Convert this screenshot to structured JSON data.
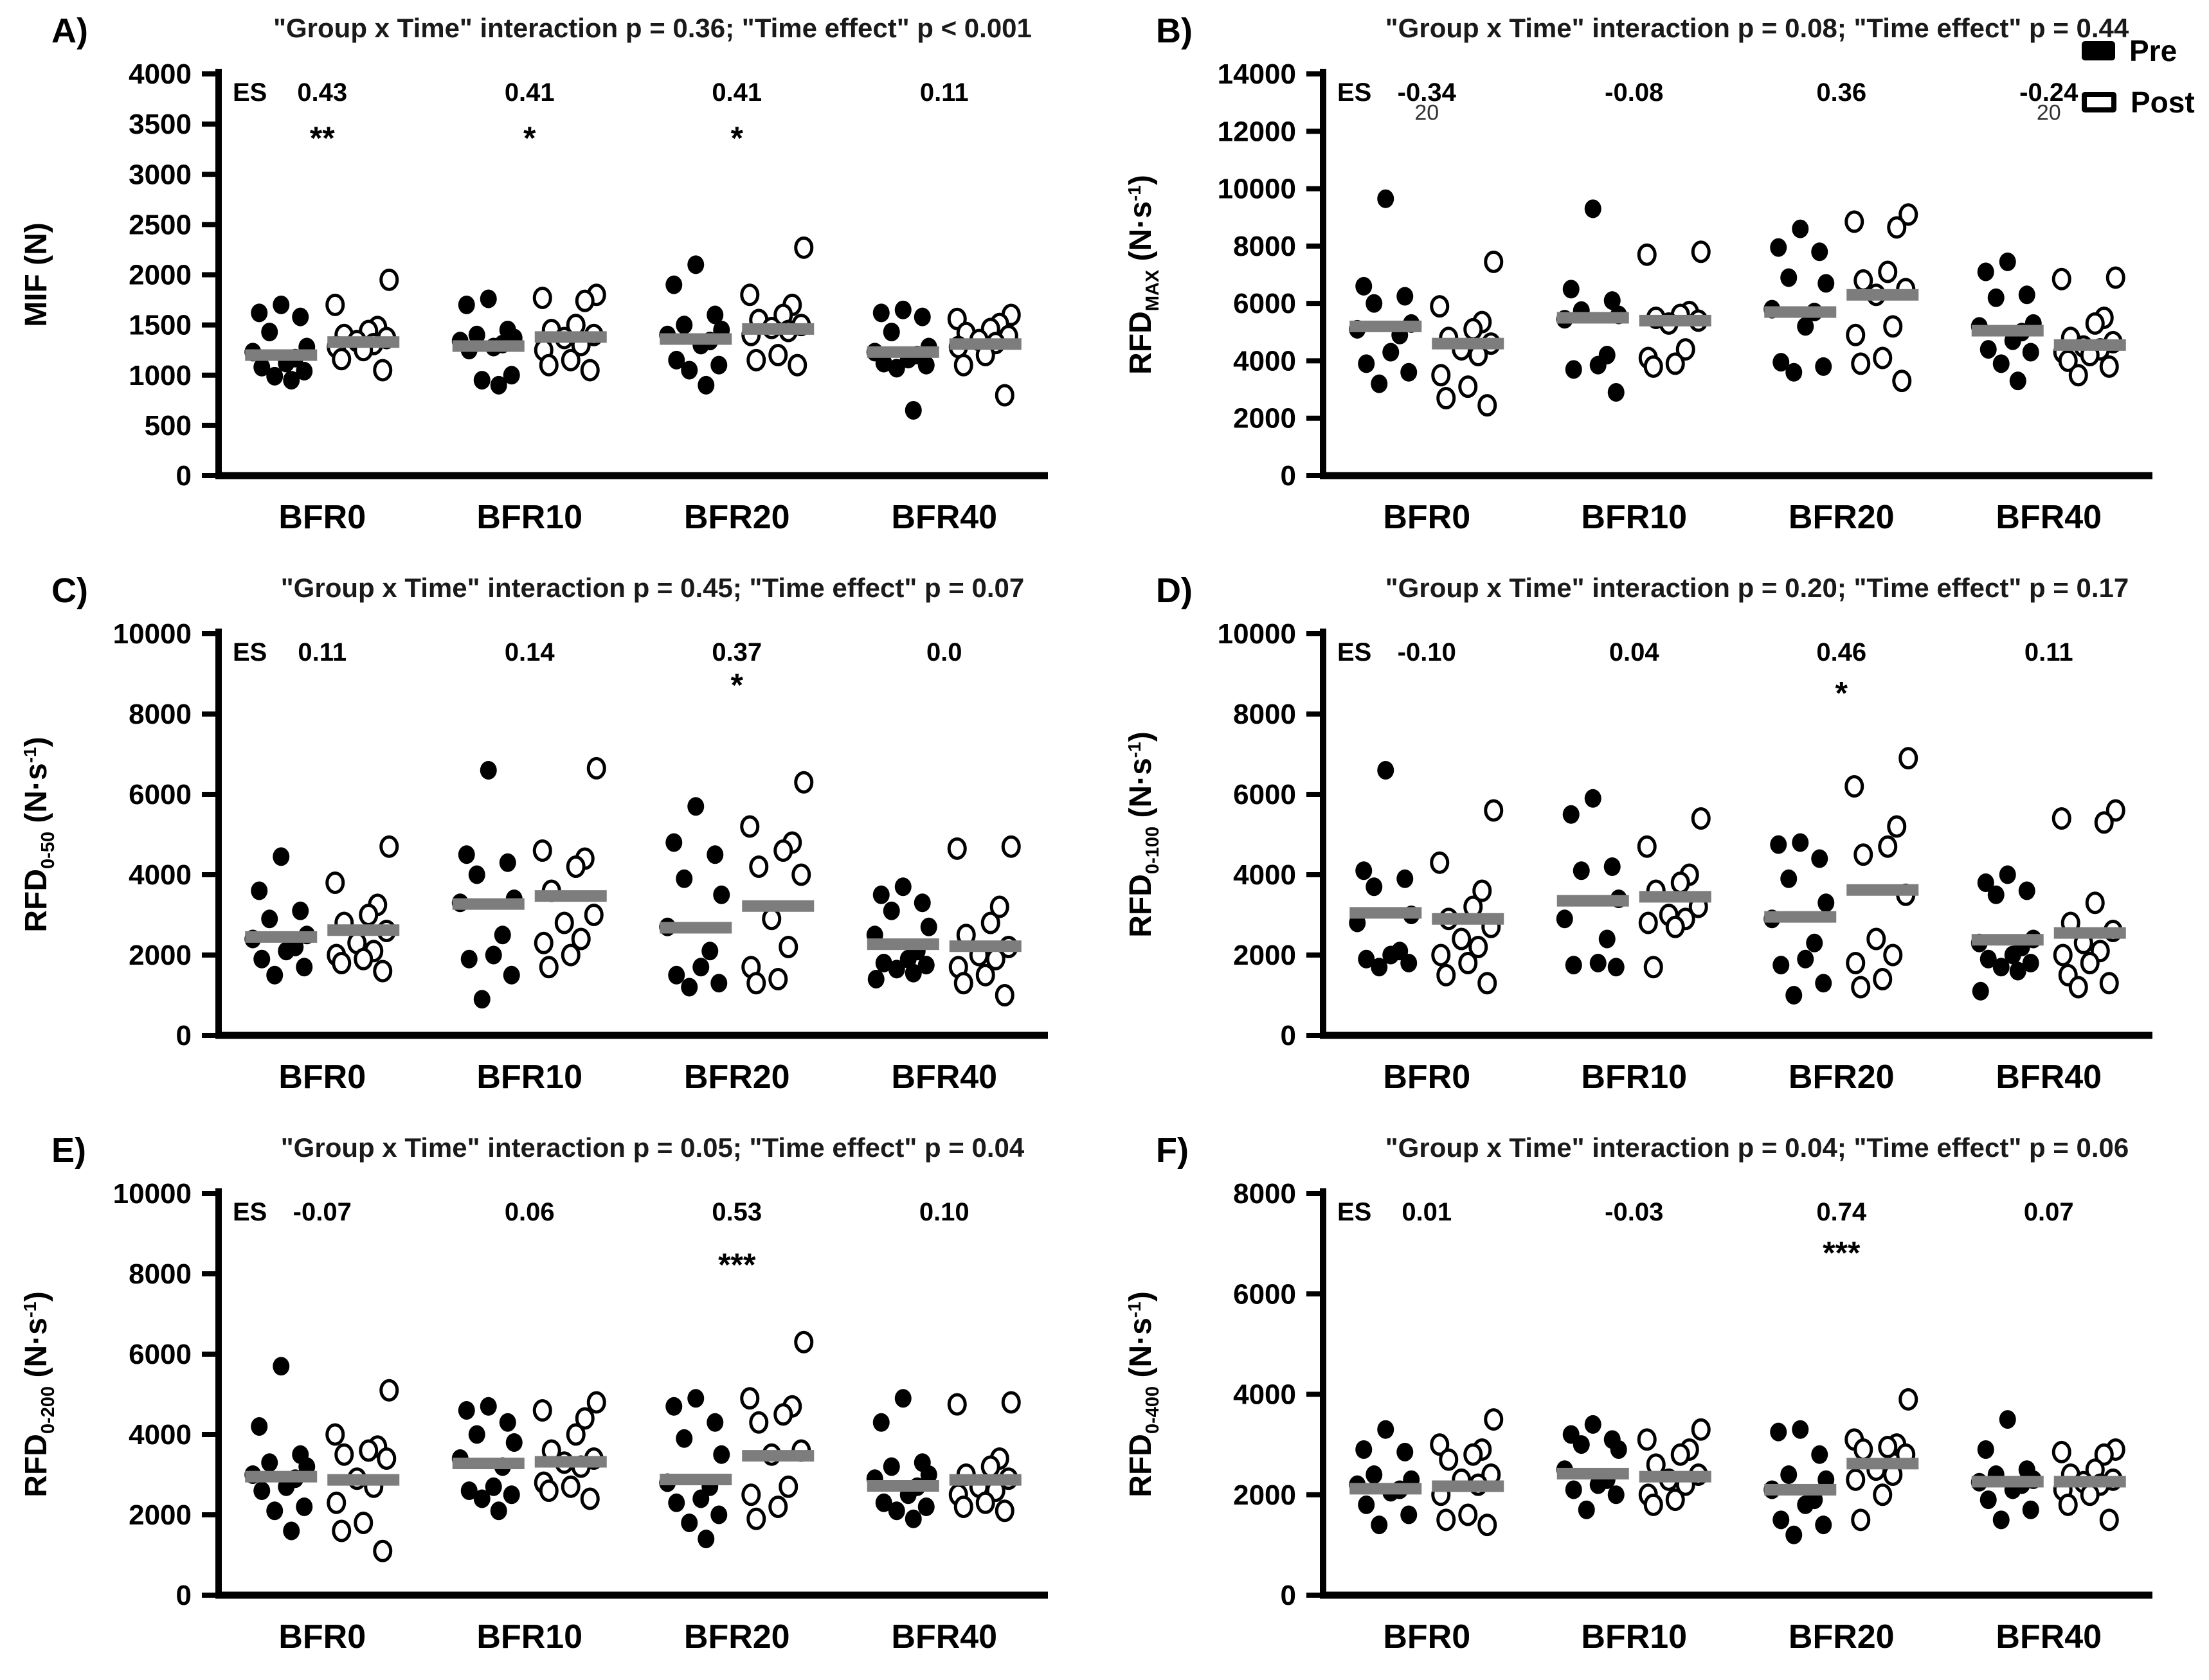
{
  "legend": {
    "pre": "Pre",
    "post": "Post"
  },
  "chart_data": [
    {
      "id": "A",
      "letter": "A)",
      "type": "scatter",
      "title": "\"Group x Time\" interaction p = 0.36; \"Time effect\"  p < 0.001",
      "ylabel": {
        "main": "MIF",
        "sub": "",
        "unit": "(N)",
        "sup": "",
        "close": ""
      },
      "ylim": [
        0,
        4000
      ],
      "ystep": 500,
      "es_label": "ES",
      "categories": [
        "BFR0",
        "BFR10",
        "BFR20",
        "BFR40"
      ],
      "es": [
        "0.43",
        "0.41",
        "0.41",
        "0.11"
      ],
      "sig": [
        {
          "group": 0,
          "text": "**",
          "y": 3250
        },
        {
          "group": 1,
          "text": "*",
          "y": 3250
        },
        {
          "group": 2,
          "text": "*",
          "y": 3250
        }
      ],
      "annotations": [],
      "groups": [
        {
          "pre": [
            1700,
            1620,
            1580,
            1430,
            1280,
            1230,
            1170,
            1120,
            1080,
            1040,
            990,
            950
          ],
          "pre_mean": 1200,
          "post": [
            1950,
            1700,
            1480,
            1440,
            1400,
            1370,
            1340,
            1310,
            1280,
            1250,
            1160,
            1050
          ],
          "post_mean": 1330
        },
        {
          "pre": [
            1760,
            1700,
            1450,
            1400,
            1370,
            1340,
            1310,
            1280,
            1250,
            1000,
            950,
            900
          ],
          "pre_mean": 1290,
          "post": [
            1800,
            1770,
            1740,
            1500,
            1450,
            1400,
            1370,
            1300,
            1250,
            1150,
            1100,
            1050
          ],
          "post_mean": 1380
        },
        {
          "pre": [
            2100,
            1900,
            1600,
            1500,
            1450,
            1400,
            1340,
            1300,
            1150,
            1100,
            1050,
            900
          ],
          "pre_mean": 1360,
          "post": [
            2270,
            1800,
            1700,
            1600,
            1550,
            1500,
            1470,
            1440,
            1400,
            1200,
            1150,
            1100
          ],
          "post_mean": 1460
        },
        {
          "pre": [
            1650,
            1620,
            1580,
            1430,
            1280,
            1230,
            1200,
            1160,
            1120,
            1100,
            1070,
            650
          ],
          "pre_mean": 1230,
          "post": [
            1600,
            1560,
            1510,
            1460,
            1420,
            1390,
            1350,
            1320,
            1280,
            1200,
            1100,
            800
          ],
          "post_mean": 1310
        }
      ]
    },
    {
      "id": "B",
      "letter": "B)",
      "type": "scatter",
      "title": "\"Group x Time\" interaction p = 0.08; \"Time effect\" p = 0.44",
      "ylabel": {
        "main": "RFD",
        "sub": "MAX",
        "unit": "(N·s",
        "sup": "-1",
        "close": ")"
      },
      "ylim": [
        0,
        14000
      ],
      "ystep": 2000,
      "es_label": "ES",
      "categories": [
        "BFR0",
        "BFR10",
        "BFR20",
        "BFR40"
      ],
      "es": [
        "-0.34",
        "-0.08",
        "0.36",
        "-0.24"
      ],
      "sig": [],
      "annotations": [
        {
          "group": 0,
          "text": "20",
          "y": 12400
        },
        {
          "group": 3,
          "text": "20",
          "y": 12400
        }
      ],
      "groups": [
        {
          "pre": [
            9650,
            6600,
            6250,
            6000,
            5300,
            5100,
            4900,
            4300,
            3900,
            3600,
            3200
          ],
          "pre_mean": 5200,
          "post": [
            7450,
            5900,
            5350,
            5100,
            4800,
            4600,
            4400,
            4200,
            3500,
            3100,
            2700,
            2450
          ],
          "post_mean": 4600
        },
        {
          "pre": [
            9300,
            6500,
            6100,
            5750,
            5600,
            5450,
            4200,
            3850,
            3700,
            2900
          ],
          "pre_mean": 5500,
          "post": [
            7800,
            7700,
            5700,
            5600,
            5500,
            5400,
            5300,
            4400,
            4100,
            3900,
            3800
          ],
          "post_mean": 5400
        },
        {
          "pre": [
            8600,
            7950,
            7800,
            6900,
            6700,
            5800,
            5700,
            5200,
            3950,
            3800,
            3600
          ],
          "pre_mean": 5700,
          "post": [
            9100,
            8850,
            8650,
            7100,
            6800,
            6500,
            6300,
            5200,
            4900,
            4100,
            3900,
            3300
          ],
          "post_mean": 6300
        },
        {
          "pre": [
            7450,
            7100,
            6300,
            6200,
            5300,
            5200,
            5000,
            4700,
            4400,
            4300,
            3900,
            3300
          ],
          "pre_mean": 5050,
          "post": [
            6900,
            6850,
            5500,
            5300,
            4800,
            4650,
            4500,
            4400,
            4300,
            4200,
            4000,
            3800,
            3500
          ],
          "post_mean": 4550
        }
      ]
    },
    {
      "id": "C",
      "letter": "C)",
      "type": "scatter",
      "title": "\"Group x Time\" interaction p = 0.45; \"Time effect\" p = 0.07",
      "ylabel": {
        "main": "RFD",
        "sub": "0-50",
        "unit": "(N·s",
        "sup": "-1",
        "close": ")"
      },
      "ylim": [
        0,
        10000
      ],
      "ystep": 2000,
      "es_label": "ES",
      "categories": [
        "BFR0",
        "BFR10",
        "BFR20",
        "BFR40"
      ],
      "es": [
        "0.11",
        "0.14",
        "0.37",
        "0.0"
      ],
      "sig": [
        {
          "group": 2,
          "text": "*",
          "y": 8450
        }
      ],
      "annotations": [],
      "groups": [
        {
          "pre": [
            4450,
            3600,
            3100,
            2900,
            2500,
            2400,
            2200,
            2100,
            1900,
            1700,
            1500
          ],
          "pre_mean": 2450,
          "post": [
            4700,
            3800,
            3250,
            3000,
            2800,
            2600,
            2300,
            2100,
            2000,
            1900,
            1800,
            1600
          ],
          "post_mean": 2620
        },
        {
          "pre": [
            6600,
            4500,
            4300,
            4000,
            3400,
            3300,
            2500,
            2000,
            1900,
            1500,
            900
          ],
          "pre_mean": 3270,
          "post": [
            6650,
            4600,
            4400,
            4200,
            3600,
            3000,
            2800,
            2400,
            2300,
            2000,
            1700
          ],
          "post_mean": 3470
        },
        {
          "pre": [
            5700,
            4800,
            4500,
            3900,
            3500,
            2700,
            2100,
            1700,
            1500,
            1300,
            1200
          ],
          "pre_mean": 2680,
          "post": [
            6300,
            5200,
            4800,
            4600,
            4200,
            4000,
            2900,
            2200,
            1700,
            1400,
            1300
          ],
          "post_mean": 3220
        },
        {
          "pre": [
            3700,
            3500,
            3300,
            3100,
            2700,
            2500,
            2100,
            1900,
            1800,
            1750,
            1650,
            1550,
            1400
          ],
          "pre_mean": 2270,
          "post": [
            4700,
            4650,
            3200,
            2800,
            2500,
            2200,
            2000,
            1900,
            1700,
            1500,
            1300,
            1000
          ],
          "post_mean": 2220
        }
      ]
    },
    {
      "id": "D",
      "letter": "D)",
      "type": "scatter",
      "title": "\"Group x Time\" interaction p = 0.20; \"Time effect\" p = 0.17",
      "ylabel": {
        "main": "RFD",
        "sub": "0-100",
        "unit": "(N·s",
        "sup": "-1",
        "close": ")"
      },
      "ylim": [
        0,
        10000
      ],
      "ystep": 2000,
      "es_label": "ES",
      "categories": [
        "BFR0",
        "BFR10",
        "BFR20",
        "BFR40"
      ],
      "es": [
        "-0.10",
        "0.04",
        "0.46",
        "0.11"
      ],
      "sig": [
        {
          "group": 2,
          "text": "*",
          "y": 8250
        }
      ],
      "annotations": [],
      "groups": [
        {
          "pre": [
            6600,
            4100,
            3900,
            3700,
            3000,
            2800,
            2100,
            2000,
            1900,
            1800,
            1700
          ],
          "pre_mean": 3050,
          "post": [
            5600,
            4300,
            3600,
            3200,
            2900,
            2700,
            2400,
            2200,
            2000,
            1800,
            1500,
            1300
          ],
          "post_mean": 2900
        },
        {
          "pre": [
            5900,
            5500,
            4200,
            4100,
            3400,
            2900,
            2400,
            1800,
            1750,
            1700
          ],
          "pre_mean": 3350,
          "post": [
            5400,
            4700,
            4000,
            3800,
            3600,
            3200,
            3000,
            2900,
            2800,
            2700,
            1700
          ],
          "post_mean": 3450
        },
        {
          "pre": [
            4800,
            4750,
            4400,
            3900,
            3300,
            2900,
            2300,
            1900,
            1750,
            1300,
            1000
          ],
          "pre_mean": 2950,
          "post": [
            6900,
            6200,
            5200,
            4700,
            4500,
            3500,
            2400,
            2000,
            1800,
            1400,
            1200
          ],
          "post_mean": 3620
        },
        {
          "pre": [
            4000,
            3800,
            3600,
            3500,
            2400,
            2300,
            2200,
            2000,
            1900,
            1800,
            1700,
            1600,
            1100
          ],
          "pre_mean": 2380,
          "post": [
            5600,
            5400,
            5300,
            3300,
            2800,
            2600,
            2300,
            2100,
            2000,
            1800,
            1500,
            1300,
            1200
          ],
          "post_mean": 2550
        }
      ]
    },
    {
      "id": "E",
      "letter": "E)",
      "type": "scatter",
      "title": "\"Group x Time\" interaction p = 0.05; \"Time effect\" p = 0.04",
      "ylabel": {
        "main": "RFD",
        "sub": "0-200",
        "unit": "(N·s",
        "sup": "-1",
        "close": ")"
      },
      "ylim": [
        0,
        10000
      ],
      "ystep": 2000,
      "es_label": "ES",
      "categories": [
        "BFR0",
        "BFR10",
        "BFR20",
        "BFR40"
      ],
      "es": [
        "-0.07",
        "0.06",
        "0.53",
        "0.10"
      ],
      "sig": [
        {
          "group": 2,
          "text": "***",
          "y": 7950
        }
      ],
      "annotations": [],
      "groups": [
        {
          "pre": [
            5700,
            4200,
            3500,
            3300,
            3200,
            3000,
            2900,
            2700,
            2600,
            2200,
            2100,
            1600
          ],
          "pre_mean": 2950,
          "post": [
            5100,
            4000,
            3700,
            3600,
            3500,
            3400,
            2900,
            2700,
            2300,
            1800,
            1600,
            1100
          ],
          "post_mean": 2870
        },
        {
          "pre": [
            4700,
            4600,
            4300,
            4000,
            3800,
            3400,
            3200,
            2700,
            2600,
            2500,
            2400,
            2100
          ],
          "pre_mean": 3280,
          "post": [
            4800,
            4600,
            4400,
            4000,
            3600,
            3400,
            3300,
            3200,
            2800,
            2700,
            2600,
            2400
          ],
          "post_mean": 3320
        },
        {
          "pre": [
            4900,
            4700,
            4300,
            3900,
            3500,
            2800,
            2700,
            2400,
            2300,
            2000,
            1800,
            1400
          ],
          "pre_mean": 2880,
          "post": [
            6300,
            4900,
            4700,
            4500,
            4300,
            3600,
            3500,
            2700,
            2500,
            2200,
            1900
          ],
          "post_mean": 3470
        },
        {
          "pre": [
            4900,
            4300,
            3300,
            3200,
            3000,
            2900,
            2700,
            2500,
            2300,
            2200,
            2100,
            1900
          ],
          "pre_mean": 2720,
          "post": [
            4800,
            4750,
            3400,
            3200,
            3000,
            2900,
            2700,
            2600,
            2500,
            2300,
            2200,
            2100
          ],
          "post_mean": 2870
        }
      ]
    },
    {
      "id": "F",
      "letter": "F)",
      "type": "scatter",
      "title": "\"Group x Time\" interaction p = 0.04; \"Time effect\" p = 0.06",
      "ylabel": {
        "main": "RFD",
        "sub": "0-400",
        "unit": "(N·s",
        "sup": "-1",
        "close": ")"
      },
      "ylim": [
        0,
        8000
      ],
      "ystep": 2000,
      "es_label": "ES",
      "categories": [
        "BFR0",
        "BFR10",
        "BFR20",
        "BFR40"
      ],
      "es": [
        "0.01",
        "-0.03",
        "0.74",
        "0.07"
      ],
      "sig": [
        {
          "group": 2,
          "text": "***",
          "y": 6600
        }
      ],
      "annotations": [],
      "groups": [
        {
          "pre": [
            3300,
            2900,
            2850,
            2400,
            2300,
            2200,
            2100,
            2050,
            1800,
            1600,
            1400
          ],
          "pre_mean": 2120,
          "post": [
            3500,
            3000,
            2900,
            2800,
            2700,
            2400,
            2300,
            2200,
            2000,
            1600,
            1500,
            1400
          ],
          "post_mean": 2170
        },
        {
          "pre": [
            3400,
            3200,
            3100,
            3000,
            2900,
            2500,
            2300,
            2200,
            2100,
            2000,
            1700
          ],
          "pre_mean": 2420,
          "post": [
            3300,
            3100,
            2900,
            2800,
            2600,
            2400,
            2300,
            2200,
            2000,
            1900,
            1800
          ],
          "post_mean": 2360
        },
        {
          "pre": [
            3300,
            3250,
            2800,
            2400,
            2300,
            2100,
            1900,
            1800,
            1500,
            1400,
            1200
          ],
          "pre_mean": 2100,
          "post": [
            3900,
            3100,
            3000,
            2950,
            2900,
            2800,
            2500,
            2400,
            2300,
            2000,
            1500
          ],
          "post_mean": 2620
        },
        {
          "pre": [
            3500,
            2900,
            2500,
            2400,
            2300,
            2250,
            2200,
            2100,
            1900,
            1700,
            1500
          ],
          "pre_mean": 2260,
          "post": [
            2900,
            2850,
            2800,
            2500,
            2400,
            2300,
            2250,
            2200,
            2100,
            2000,
            1800,
            1500
          ],
          "post_mean": 2260
        }
      ]
    }
  ]
}
